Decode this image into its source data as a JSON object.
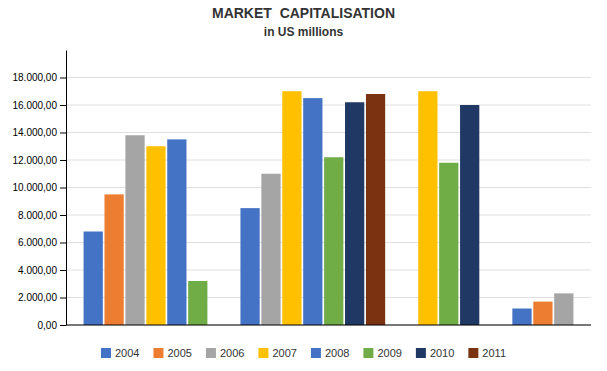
{
  "chart_data": {
    "type": "bar",
    "title": "MARKET  CAPITALISATION",
    "subtitle": "in US millions",
    "categories": [
      null,
      null,
      null,
      null
    ],
    "series": [
      {
        "name": "2004",
        "color": "#4472C4",
        "values": [
          6800,
          8500,
          null,
          1200
        ]
      },
      {
        "name": "2005",
        "color": "#ED7D31",
        "values": [
          9500,
          null,
          null,
          1700
        ]
      },
      {
        "name": "2006",
        "color": "#A5A5A5",
        "values": [
          13800,
          11000,
          null,
          2300
        ]
      },
      {
        "name": "2007",
        "color": "#FFC000",
        "values": [
          13000,
          17000,
          17000,
          null
        ]
      },
      {
        "name": "2008",
        "color": "#4472C4",
        "values": [
          13500,
          16500,
          null,
          null
        ]
      },
      {
        "name": "2009",
        "color": "#70AD47",
        "values": [
          3200,
          12200,
          11800,
          null
        ]
      },
      {
        "name": "2010",
        "color": "#1F3864",
        "values": [
          null,
          16200,
          16000,
          null
        ]
      },
      {
        "name": "2011",
        "color": "#7B3210",
        "values": [
          null,
          16800,
          null,
          null
        ]
      }
    ],
    "ylim": [
      0,
      20000
    ],
    "yticks": [
      {
        "value": 0,
        "label": "0,00"
      },
      {
        "value": 2000,
        "label": "2.000,00"
      },
      {
        "value": 4000,
        "label": "4.000,00"
      },
      {
        "value": 6000,
        "label": "6.000,00"
      },
      {
        "value": 8000,
        "label": "8.000,00"
      },
      {
        "value": 10000,
        "label": "10.000,00"
      },
      {
        "value": 12000,
        "label": "12.000,00"
      },
      {
        "value": 14000,
        "label": "14.000,00"
      },
      {
        "value": 16000,
        "label": "16.000,00"
      },
      {
        "value": 18000,
        "label": "18.000,00"
      }
    ],
    "grid": true,
    "legend": "bottom",
    "tick_labels": "y"
  }
}
